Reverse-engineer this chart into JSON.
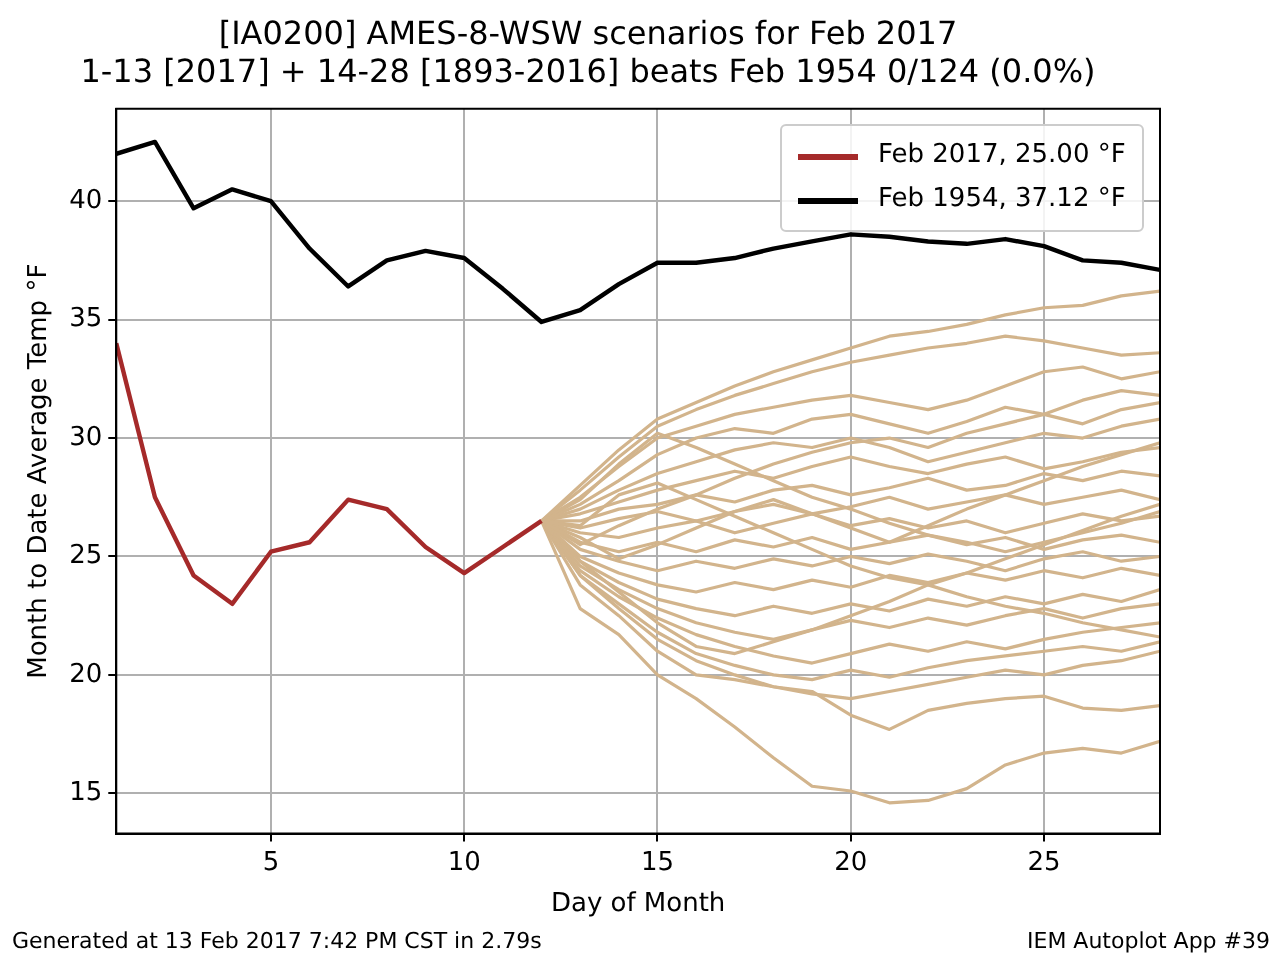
{
  "chart_data": {
    "type": "line",
    "title": "[IA0200] AMES-8-WSW scenarios for Feb 2017",
    "subtitle": "1-13 [2017] + 14-28 [1893-2016] beats Feb 1954 0/124 (0.0%)",
    "xlabel": "Day of Month",
    "ylabel": "Month to Date Average Temp °F",
    "xlim": [
      1,
      28
    ],
    "xticks": [
      5,
      10,
      15,
      20,
      25
    ],
    "ylim": [
      13.3,
      43.9
    ],
    "yticks": [
      15,
      20,
      25,
      30,
      35,
      40
    ],
    "grid": true,
    "legend": "top right",
    "marker": "none",
    "line_style": "solid",
    "annotations": [
      "Generated at 13 Feb 2017 7:42 PM CST in 2.79s",
      "IEM Autoplot App #39"
    ],
    "x": [
      12,
      13,
      14,
      15,
      16,
      17,
      18,
      19,
      20,
      21,
      22,
      23,
      24,
      25,
      26,
      27,
      28
    ],
    "series": [
      {
        "color": "#d2b48c",
        "values": [
          26.5,
          28.0,
          29.5,
          30.8,
          31.5,
          32.2,
          32.8,
          33.3,
          33.8,
          34.3,
          34.5,
          34.8,
          35.2,
          35.5,
          35.6,
          36.0,
          36.2
        ]
      },
      {
        "color": "#d2b48c",
        "values": [
          26.5,
          27.8,
          29.2,
          30.5,
          31.2,
          31.8,
          32.3,
          32.8,
          33.2,
          33.5,
          33.8,
          34.0,
          34.3,
          34.1,
          33.8,
          33.5,
          33.6
        ]
      },
      {
        "color": "#d2b48c",
        "values": [
          26.5,
          27.5,
          28.8,
          30.0,
          30.5,
          31.0,
          31.3,
          31.6,
          31.8,
          31.5,
          31.2,
          31.6,
          32.2,
          32.8,
          33.0,
          32.5,
          32.8
        ]
      },
      {
        "color": "#d2b48c",
        "values": [
          26.5,
          27.2,
          28.2,
          29.3,
          30.0,
          30.4,
          30.2,
          30.8,
          31.0,
          30.6,
          30.2,
          30.7,
          31.3,
          31.0,
          31.6,
          32.0,
          31.8
        ]
      },
      {
        "color": "#d2b48c",
        "values": [
          26.5,
          27.0,
          27.8,
          28.5,
          29.0,
          29.5,
          29.8,
          29.6,
          30.0,
          29.6,
          29.0,
          29.4,
          29.8,
          30.2,
          30.0,
          30.5,
          30.8
        ]
      },
      {
        "color": "#d2b48c",
        "values": [
          26.5,
          26.8,
          27.3,
          27.8,
          28.2,
          28.6,
          28.3,
          28.8,
          29.2,
          28.8,
          28.5,
          28.9,
          29.2,
          28.7,
          29.0,
          29.4,
          29.6
        ]
      },
      {
        "color": "#d2b48c",
        "values": [
          26.5,
          26.5,
          27.0,
          27.2,
          27.6,
          27.3,
          27.8,
          28.0,
          27.6,
          27.9,
          28.3,
          27.8,
          28.0,
          28.5,
          28.2,
          28.6,
          28.4
        ]
      },
      {
        "color": "#d2b48c",
        "values": [
          26.5,
          26.2,
          26.6,
          26.9,
          26.5,
          26.9,
          27.2,
          26.8,
          27.1,
          27.5,
          27.0,
          27.3,
          27.6,
          27.2,
          27.5,
          27.8,
          27.4
        ]
      },
      {
        "color": "#d2b48c",
        "values": [
          26.5,
          26.0,
          25.8,
          26.2,
          26.5,
          26.0,
          26.4,
          26.8,
          26.3,
          26.6,
          26.2,
          26.5,
          26.0,
          26.4,
          26.8,
          26.5,
          26.7
        ]
      },
      {
        "color": "#d2b48c",
        "values": [
          26.5,
          25.6,
          25.2,
          25.6,
          25.2,
          25.7,
          25.4,
          25.8,
          25.3,
          25.6,
          25.9,
          25.5,
          25.8,
          25.3,
          25.7,
          25.9,
          25.6
        ]
      },
      {
        "color": "#d2b48c",
        "values": [
          26.5,
          25.3,
          24.8,
          24.4,
          24.8,
          24.5,
          24.9,
          24.6,
          25.0,
          24.7,
          25.1,
          24.8,
          24.4,
          24.9,
          25.2,
          24.8,
          25.0
        ]
      },
      {
        "color": "#d2b48c",
        "values": [
          26.5,
          25.0,
          24.3,
          23.8,
          23.5,
          23.9,
          23.6,
          24.0,
          23.7,
          24.2,
          23.9,
          24.3,
          24.0,
          24.4,
          24.1,
          24.5,
          24.2
        ]
      },
      {
        "color": "#d2b48c",
        "values": [
          26.5,
          24.8,
          23.9,
          23.2,
          22.8,
          22.5,
          22.9,
          22.6,
          23.0,
          22.7,
          23.2,
          22.9,
          23.3,
          23.0,
          23.4,
          23.1,
          23.6
        ]
      },
      {
        "color": "#d2b48c",
        "values": [
          26.5,
          24.6,
          23.6,
          22.8,
          22.2,
          21.8,
          21.5,
          21.9,
          22.3,
          22.0,
          22.4,
          22.1,
          22.5,
          22.8,
          22.4,
          22.8,
          23.0
        ]
      },
      {
        "color": "#d2b48c",
        "values": [
          26.5,
          24.4,
          23.3,
          22.4,
          21.7,
          21.2,
          20.8,
          20.5,
          20.9,
          21.3,
          21.0,
          21.4,
          21.1,
          21.5,
          21.8,
          22.0,
          22.2
        ]
      },
      {
        "color": "#d2b48c",
        "values": [
          26.5,
          24.2,
          23.0,
          21.8,
          20.9,
          20.4,
          20.0,
          19.8,
          20.2,
          19.9,
          20.3,
          20.6,
          20.8,
          21.0,
          21.2,
          21.0,
          21.4
        ]
      },
      {
        "color": "#d2b48c",
        "values": [
          26.5,
          24.2,
          22.8,
          21.5,
          20.6,
          20.0,
          19.5,
          19.2,
          19.0,
          19.3,
          19.6,
          19.9,
          20.2,
          20.0,
          20.4,
          20.6,
          21.0
        ]
      },
      {
        "color": "#d2b48c",
        "values": [
          26.5,
          23.8,
          22.5,
          21.0,
          20.0,
          19.8,
          19.5,
          19.3,
          18.3,
          17.7,
          18.5,
          18.8,
          19.0,
          19.1,
          18.6,
          18.5,
          18.7
        ]
      },
      {
        "color": "#d2b48c",
        "values": [
          26.5,
          22.8,
          21.7,
          20.0,
          19.0,
          17.8,
          16.5,
          15.3,
          15.1,
          14.6,
          14.7,
          15.2,
          16.2,
          16.7,
          16.9,
          16.7,
          17.2
        ]
      },
      {
        "color": "#d2b48c",
        "values": [
          26.5,
          25.5,
          26.3,
          27.0,
          27.6,
          28.3,
          28.9,
          29.4,
          29.8,
          30.0,
          29.6,
          30.2,
          30.6,
          31.0,
          30.6,
          31.2,
          31.5
        ]
      },
      {
        "color": "#d2b48c",
        "values": [
          26.5,
          25.8,
          24.9,
          25.5,
          26.2,
          26.9,
          27.4,
          26.8,
          26.2,
          25.6,
          26.3,
          27.0,
          27.6,
          28.2,
          28.8,
          29.3,
          29.8
        ]
      },
      {
        "color": "#d2b48c",
        "values": [
          26.5,
          26.3,
          27.6,
          28.1,
          27.4,
          26.7,
          26.0,
          25.3,
          24.6,
          24.1,
          23.8,
          23.3,
          22.9,
          22.6,
          22.2,
          21.9,
          21.6
        ]
      },
      {
        "color": "#d2b48c",
        "values": [
          26.5,
          27.4,
          28.9,
          30.2,
          29.6,
          28.9,
          28.2,
          27.5,
          27.0,
          26.4,
          25.9,
          25.6,
          25.2,
          25.6,
          26.0,
          26.4,
          26.9
        ]
      },
      {
        "color": "#d2b48c",
        "values": [
          26.5,
          24.8,
          23.5,
          22.2,
          21.2,
          20.9,
          21.4,
          21.9,
          22.5,
          23.1,
          23.8,
          24.3,
          24.9,
          25.5,
          26.1,
          26.7,
          27.2
        ]
      },
      {
        "name": "Feb 2017, 25.00 °F",
        "color": "#a52a2a",
        "x": [
          1,
          2,
          3,
          4,
          5,
          6,
          7,
          8,
          9,
          10,
          11,
          12
        ],
        "values": [
          34.0,
          27.5,
          24.2,
          23.0,
          25.2,
          25.6,
          27.4,
          27.0,
          25.4,
          24.3,
          25.4,
          26.5
        ]
      },
      {
        "name": "Feb 1954, 37.12 °F",
        "color": "#000000",
        "x": [
          1,
          2,
          3,
          4,
          5,
          6,
          7,
          8,
          9,
          10,
          11,
          12,
          13,
          14,
          15,
          16,
          17,
          18,
          19,
          20,
          21,
          22,
          23,
          24,
          25,
          26,
          27,
          28
        ],
        "values": [
          42.0,
          42.5,
          39.7,
          40.5,
          40.0,
          38.0,
          36.4,
          37.5,
          37.9,
          37.6,
          36.3,
          34.9,
          35.4,
          36.5,
          37.4,
          37.4,
          37.6,
          38.0,
          38.3,
          38.6,
          38.5,
          38.3,
          38.2,
          38.4,
          38.1,
          37.5,
          37.4,
          37.1
        ]
      }
    ]
  }
}
